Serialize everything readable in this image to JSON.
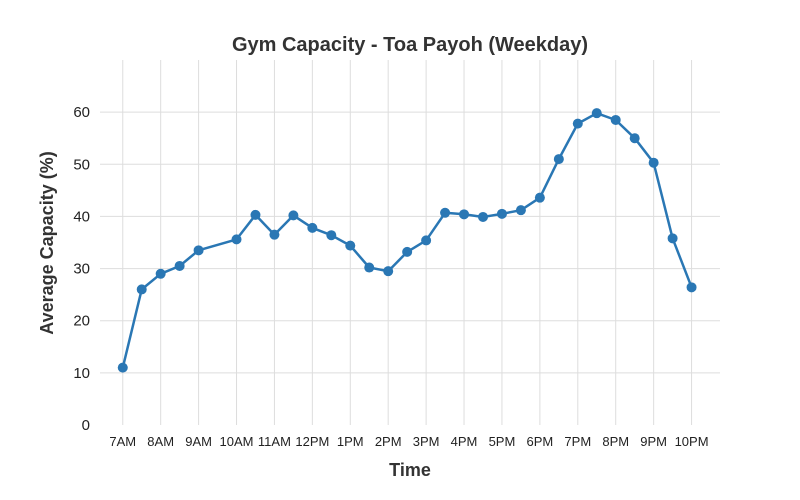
{
  "chart_data": {
    "type": "line",
    "title": "Gym Capacity - Toa Payoh (Weekday)",
    "xlabel": "Time",
    "ylabel": "Average Capacity (%)",
    "x_ticks": [
      {
        "label": "7AM",
        "hour": 7
      },
      {
        "label": "8AM",
        "hour": 8
      },
      {
        "label": "9AM",
        "hour": 9
      },
      {
        "label": "10AM",
        "hour": 10
      },
      {
        "label": "11AM",
        "hour": 11
      },
      {
        "label": "12PM",
        "hour": 12
      },
      {
        "label": "1PM",
        "hour": 13
      },
      {
        "label": "2PM",
        "hour": 14
      },
      {
        "label": "3PM",
        "hour": 15
      },
      {
        "label": "4PM",
        "hour": 16
      },
      {
        "label": "5PM",
        "hour": 17
      },
      {
        "label": "6PM",
        "hour": 18
      },
      {
        "label": "7PM",
        "hour": 19
      },
      {
        "label": "8PM",
        "hour": 20
      },
      {
        "label": "9PM",
        "hour": 21
      },
      {
        "label": "10PM",
        "hour": 22
      }
    ],
    "y_ticks": [
      0,
      10,
      20,
      30,
      40,
      50,
      60
    ],
    "xlim": [
      6.4,
      22.75
    ],
    "ylim": [
      0,
      70
    ],
    "grid": true,
    "series": [
      {
        "color": "#2a77b4",
        "x": [
          7,
          7.5,
          8,
          8.5,
          9,
          10,
          10.5,
          11,
          11.5,
          12,
          12.5,
          13,
          13.5,
          14,
          14.5,
          15,
          15.5,
          16,
          16.5,
          17,
          17.5,
          18,
          18.5,
          19,
          19.5,
          20,
          20.5,
          21,
          21.5,
          22
        ],
        "y": [
          11,
          26,
          29,
          30.5,
          33.5,
          35.6,
          40.3,
          36.5,
          40.2,
          37.8,
          36.4,
          34.4,
          30.2,
          29.5,
          33.2,
          35.4,
          40.7,
          40.4,
          39.9,
          40.5,
          41.2,
          43.6,
          51,
          57.8,
          59.8,
          58.5,
          55,
          50.3,
          35.8,
          26.4
        ]
      }
    ]
  }
}
